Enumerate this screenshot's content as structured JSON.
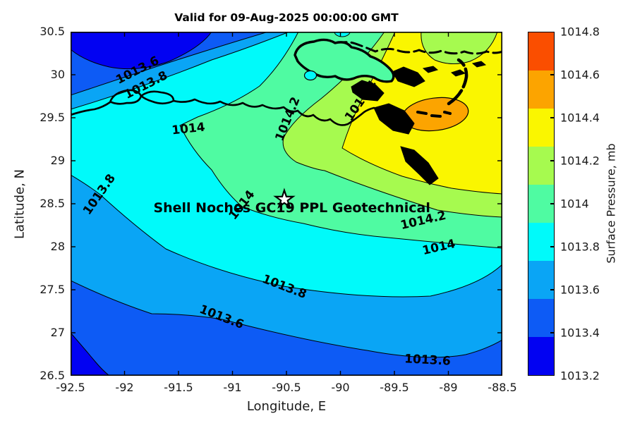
{
  "title": "Valid for 09-Aug-2025 00:00:00 GMT",
  "chart_data": {
    "type": "filled_contour",
    "title": "Valid for 09-Aug-2025 00:00:00 GMT",
    "xlabel": "Longitude, E",
    "ylabel": "Latitude, N",
    "xlim": [
      -92.5,
      -88.5
    ],
    "ylim": [
      26.5,
      30.5
    ],
    "grid": false,
    "x_ticks": [
      "-92.5",
      "-92",
      "-91.5",
      "-91",
      "-90.5",
      "-90",
      "-89.5",
      "-89",
      "-88.5"
    ],
    "y_ticks": [
      "26.5",
      "27",
      "27.5",
      "28",
      "28.5",
      "29",
      "29.5",
      "30",
      "30.5"
    ],
    "colorbar": {
      "label": "Surface Pressure, mb",
      "tick_labels": [
        "1013.2",
        "1013.4",
        "1013.6",
        "1013.8",
        "1014",
        "1014.2",
        "1014.4",
        "1014.6",
        "1014.8"
      ],
      "levels": [
        1013.2,
        1013.4,
        1013.6,
        1013.8,
        1014,
        1014.2,
        1014.4,
        1014.6,
        1014.8
      ],
      "colors": [
        "#0202F2",
        "#0D5BF5",
        "#0AA5F5",
        "#00FAFA",
        "#4FFBA2",
        "#A6FA4F",
        "#FAF600",
        "#FCA400",
        "#FA4E00"
      ],
      "position": "right"
    },
    "contour_labels": [
      {
        "value": "1013.6",
        "lon": -91.88,
        "lat": 30.05,
        "rot": -27
      },
      {
        "value": "1013.8",
        "lon": -91.8,
        "lat": 29.88,
        "rot": -27
      },
      {
        "value": "1014",
        "lon": -91.41,
        "lat": 29.37,
        "rot": -6
      },
      {
        "value": "1014.2",
        "lon": -90.49,
        "lat": 29.48,
        "rot": -68
      },
      {
        "value": "1014.4",
        "lon": -89.81,
        "lat": 29.7,
        "rot": -55
      },
      {
        "value": "1014",
        "lon": -90.91,
        "lat": 28.48,
        "rot": -52
      },
      {
        "value": "1014.2",
        "lon": -89.23,
        "lat": 28.3,
        "rot": -13
      },
      {
        "value": "1014",
        "lon": -89.09,
        "lat": 27.99,
        "rot": -13
      },
      {
        "value": "1013.8",
        "lon": -92.23,
        "lat": 28.61,
        "rot": -55
      },
      {
        "value": "1013.8",
        "lon": -90.52,
        "lat": 27.53,
        "rot": 21
      },
      {
        "value": "1013.6",
        "lon": -91.1,
        "lat": 27.18,
        "rot": 21
      },
      {
        "value": "1013.6",
        "lon": -89.19,
        "lat": 26.68,
        "rot": 3
      }
    ],
    "annotation": {
      "text": "Shell Noches  GC19 PPL  Geotechnical",
      "lon": -90.45,
      "lat": 28.45
    },
    "marker": {
      "type": "star",
      "lon": -90.52,
      "lat": 28.55
    },
    "pressure_max_area": {
      "band_min": 1014.6,
      "band_max": 1014.8,
      "lon": -89.12,
      "lat": 29.54
    }
  }
}
